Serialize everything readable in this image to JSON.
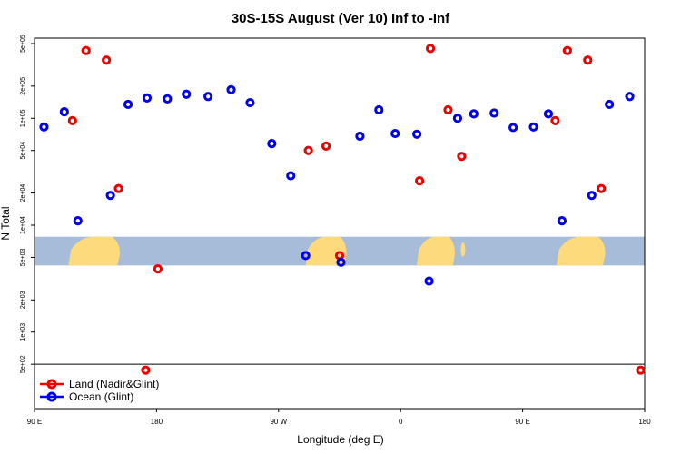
{
  "chart_data": {
    "type": "scatter",
    "title": "30S-15S August (Ver 10)   Inf to -Inf",
    "xlabel": "Longitude (deg E)",
    "ylabel": "N Total",
    "x_range": [
      90,
      540
    ],
    "y_log": true,
    "y_range": [
      200,
      500000
    ],
    "x_ticks": [
      {
        "value": 90,
        "label": "90 E"
      },
      {
        "value": 180,
        "label": "180"
      },
      {
        "value": 270,
        "label": "90 W"
      },
      {
        "value": 360,
        "label": "0"
      },
      {
        "value": 450,
        "label": "90 E"
      },
      {
        "value": 540,
        "label": "180"
      }
    ],
    "y_ticks": [
      {
        "value": 500,
        "label": "5e+02"
      },
      {
        "value": 1000,
        "label": "1e+03"
      },
      {
        "value": 2000,
        "label": "2e+03"
      },
      {
        "value": 5000,
        "label": "5e+03"
      },
      {
        "value": 10000,
        "label": "1e+04"
      },
      {
        "value": 20000,
        "label": "2e+04"
      },
      {
        "value": 50000,
        "label": "5e+04"
      },
      {
        "value": 100000,
        "label": "1e+05"
      },
      {
        "value": 200000,
        "label": "2e+05"
      },
      {
        "value": 500000,
        "label": "5e+05"
      }
    ],
    "map_strip": {
      "y_min": 4200,
      "y_max": 7800,
      "ocean_color": "#a6bcd9",
      "land_color": "#fdda7c"
    },
    "reference_line_y": 500,
    "series": [
      {
        "name": "Land (Nadir&Glint)",
        "color": "#ee0000",
        "points": [
          [
            118,
            95000
          ],
          [
            128,
            430000
          ],
          [
            143,
            350000
          ],
          [
            152,
            22000
          ],
          [
            172,
            440
          ],
          [
            181,
            3900
          ],
          [
            292,
            50000
          ],
          [
            305,
            55000
          ],
          [
            315,
            5200
          ],
          [
            374,
            26000
          ],
          [
            382,
            450000
          ],
          [
            395,
            120000
          ],
          [
            405,
            44000
          ],
          [
            474,
            95000
          ],
          [
            483,
            430000
          ],
          [
            498,
            350000
          ],
          [
            508,
            22000
          ],
          [
            537,
            440
          ]
        ]
      },
      {
        "name": "Ocean (Glint)",
        "color": "#0000ee",
        "points": [
          [
            97,
            83000
          ],
          [
            112,
            115000
          ],
          [
            122,
            11000
          ],
          [
            146,
            19000
          ],
          [
            159,
            135000
          ],
          [
            173,
            155000
          ],
          [
            188,
            152000
          ],
          [
            202,
            168000
          ],
          [
            218,
            160000
          ],
          [
            235,
            185000
          ],
          [
            249,
            140000
          ],
          [
            265,
            58000
          ],
          [
            279,
            29000
          ],
          [
            290,
            5200
          ],
          [
            316,
            4500
          ],
          [
            330,
            68000
          ],
          [
            344,
            120000
          ],
          [
            356,
            72000
          ],
          [
            372,
            71000
          ],
          [
            381,
            3000
          ],
          [
            402,
            100000
          ],
          [
            414,
            110000
          ],
          [
            429,
            112000
          ],
          [
            443,
            82000
          ],
          [
            458,
            83000
          ],
          [
            469,
            110000
          ],
          [
            479,
            11000
          ],
          [
            501,
            19000
          ],
          [
            514,
            135000
          ],
          [
            529,
            160000
          ]
        ]
      }
    ]
  }
}
